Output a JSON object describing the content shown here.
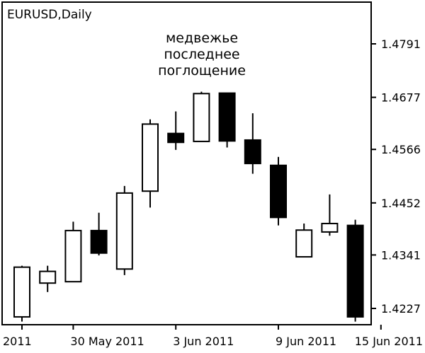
{
  "chart_data": {
    "type": "candlestick",
    "title": "EURUSD,Daily",
    "annotation": [
      "медвежье",
      "последнее",
      "поглощение"
    ],
    "y_ticks": [
      1.4791,
      1.4677,
      1.4566,
      1.4452,
      1.4341,
      1.4227
    ],
    "y_tick_labels": [
      "1.4791",
      "1.4677",
      "1.4566",
      "1.4452",
      "1.4341",
      "1.4227"
    ],
    "x_tick_labels": [
      "2011",
      "30 May 2011",
      "3 Jun 2011",
      "9 Jun 2011",
      "15 Jun 2011"
    ],
    "x_tick_candle_index": [
      0,
      2,
      6,
      10,
      14
    ],
    "ylim": [
      1.4199,
      1.4905
    ],
    "candles": [
      {
        "open": 1.4209,
        "close": 1.4315,
        "high": 1.4318,
        "low": 1.4199
      },
      {
        "open": 1.4281,
        "close": 1.4306,
        "high": 1.4318,
        "low": 1.4262
      },
      {
        "open": 1.4284,
        "close": 1.4393,
        "high": 1.4412,
        "low": 1.4284
      },
      {
        "open": 1.4393,
        "close": 1.4345,
        "high": 1.4431,
        "low": 1.434
      },
      {
        "open": 1.4311,
        "close": 1.4473,
        "high": 1.4488,
        "low": 1.4298
      },
      {
        "open": 1.4477,
        "close": 1.462,
        "high": 1.463,
        "low": 1.4442
      },
      {
        "open": 1.46,
        "close": 1.4581,
        "high": 1.4647,
        "low": 1.4565
      },
      {
        "open": 1.4583,
        "close": 1.4685,
        "high": 1.4689,
        "low": 1.4583
      },
      {
        "open": 1.4686,
        "close": 1.4584,
        "high": 1.4686,
        "low": 1.457
      },
      {
        "open": 1.4586,
        "close": 1.4536,
        "high": 1.4643,
        "low": 1.4514
      },
      {
        "open": 1.4532,
        "close": 1.4421,
        "high": 1.455,
        "low": 1.4404
      },
      {
        "open": 1.4337,
        "close": 1.4394,
        "high": 1.4408,
        "low": 1.4337
      },
      {
        "open": 1.439,
        "close": 1.4408,
        "high": 1.447,
        "low": 1.4382
      },
      {
        "open": 1.4404,
        "close": 1.4209,
        "high": 1.4416,
        "low": 1.4199
      }
    ],
    "colors": {
      "bull": "#ffffff",
      "bear": "#000000",
      "outline": "#000000",
      "background": "#ffffff"
    },
    "grid": false
  }
}
